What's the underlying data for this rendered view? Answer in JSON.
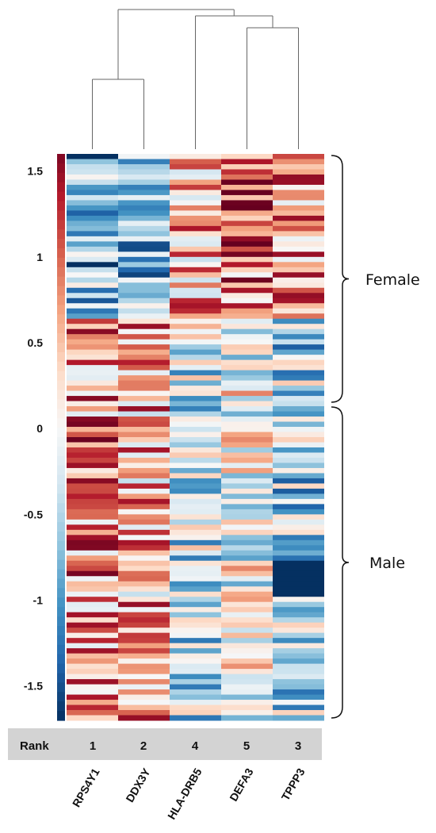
{
  "chart_data": {
    "type": "heatmap",
    "columns": [
      "RPS4Y1",
      "DDX3Y",
      "HLA-DRB5",
      "DEFA3",
      "TPPP3"
    ],
    "ranks": [
      "1",
      "2",
      "4",
      "5",
      "3"
    ],
    "rank_label": "Rank",
    "colorbar": {
      "ticks": [
        "1.5",
        "1",
        "0.5",
        "0",
        "-0.5",
        "-1",
        "-1.5"
      ],
      "tick_values": [
        1.5,
        1.0,
        0.5,
        0.0,
        -0.5,
        -1.0,
        -1.5
      ],
      "range": [
        -1.7,
        1.6
      ],
      "colormap": "diverging blue-white-red (RdBu reversed)"
    },
    "groups": [
      {
        "label": "Female",
        "rows": [
          0,
          31
        ]
      },
      {
        "label": "Male",
        "rows": [
          32,
          109
        ]
      }
    ],
    "dendrogram": "RPS4Y1 and DDX3Y cluster together; DEFA3 and TPPP3 cluster together, then join HLA-DRB5; both clusters join at the top",
    "pattern": {
      "female": {
        "RPS4Y1": "blue",
        "DDX3Y": "blue",
        "HLA-DRB5": "mixed red",
        "DEFA3": "red",
        "TPPP3": "red"
      },
      "male": {
        "RPS4Y1": "red",
        "DDX3Y": "red",
        "HLA-DRB5": "mixed blue",
        "DEFA3": "mixed",
        "TPPP3": "blue"
      }
    }
  },
  "colors": {
    "dark_red": "#67001f",
    "red": "#b2182b",
    "mid_red": "#d6604d",
    "light_red": "#f4a582",
    "pale_red": "#fddbc7",
    "white": "#f7f7f7",
    "pale_blue": "#d1e5f0",
    "light_blue": "#92c5de",
    "mid_blue": "#4393c3",
    "blue": "#2166ac",
    "dark_blue": "#053061",
    "rank_bar": "#d3d3d3"
  }
}
